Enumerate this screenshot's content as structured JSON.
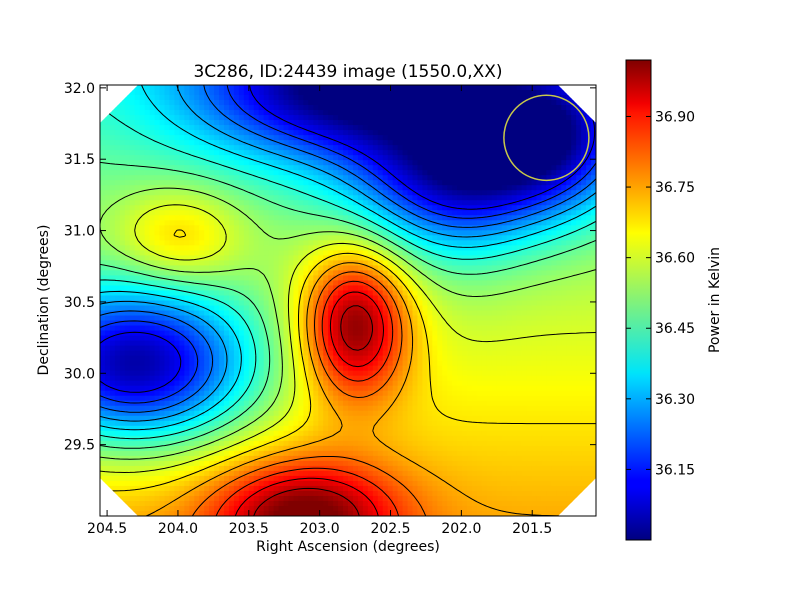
{
  "chart_data": {
    "type": "heatmap",
    "title": "3C286, ID:24439 image (1550.0,XX)",
    "xlabel": "Right Ascension (degrees)",
    "ylabel": "Declination (degrees)",
    "xlim": [
      204.55,
      201.05
    ],
    "ylim": [
      29.0,
      32.02
    ],
    "x_ticks": [
      {
        "value": 204.5,
        "label": "204.5"
      },
      {
        "value": 204.0,
        "label": "204.0"
      },
      {
        "value": 203.5,
        "label": "203.5"
      },
      {
        "value": 203.0,
        "label": "203.0"
      },
      {
        "value": 202.5,
        "label": "202.5"
      },
      {
        "value": 202.0,
        "label": "202.0"
      },
      {
        "value": 201.5,
        "label": "201.5"
      }
    ],
    "y_ticks": [
      {
        "value": 29.5,
        "label": "29.5"
      },
      {
        "value": 30.0,
        "label": "30.0"
      },
      {
        "value": 30.5,
        "label": "30.5"
      },
      {
        "value": 31.0,
        "label": "31.0"
      },
      {
        "value": 31.5,
        "label": "31.5"
      },
      {
        "value": 32.0,
        "label": "32.0"
      }
    ],
    "colorbar": {
      "label": "Power in Kelvin",
      "range": [
        36.0,
        37.02
      ],
      "colormap": "jet",
      "ticks": [
        {
          "value": 36.15,
          "label": "36.15"
        },
        {
          "value": 36.3,
          "label": "36.30"
        },
        {
          "value": 36.45,
          "label": "36.45"
        },
        {
          "value": 36.6,
          "label": "36.60"
        },
        {
          "value": 36.75,
          "label": "36.75"
        },
        {
          "value": 36.9,
          "label": "36.90"
        }
      ]
    },
    "contour_levels": [
      36.12,
      36.18,
      36.24,
      36.3,
      36.36,
      36.42,
      36.48,
      36.54,
      36.6,
      36.66,
      36.72,
      36.78,
      36.84,
      36.9,
      36.96
    ],
    "field_features": [
      {
        "kind": "minimum",
        "ra": 204.3,
        "dec": 30.05,
        "value": 36.0
      },
      {
        "kind": "maximum",
        "ra": 202.75,
        "dec": 30.35,
        "value": 37.0
      },
      {
        "kind": "maximum",
        "ra": 204.0,
        "dec": 30.95,
        "value": 36.74
      },
      {
        "kind": "maximum",
        "ra": 203.1,
        "dec": 29.0,
        "value": 36.92
      },
      {
        "kind": "minimum",
        "ra": 202.1,
        "dec": 31.35,
        "value": 36.22
      },
      {
        "kind": "minimum",
        "ra": 202.8,
        "dec": 32.0,
        "value": 36.1
      },
      {
        "kind": "minimum",
        "ra": 201.4,
        "dec": 31.65,
        "value": 36.16
      }
    ],
    "beam_marker": {
      "ra": 201.4,
      "dec": 31.65,
      "radius_deg": 0.3,
      "color": "#c8c84a"
    },
    "grid": false,
    "legend": "none"
  }
}
